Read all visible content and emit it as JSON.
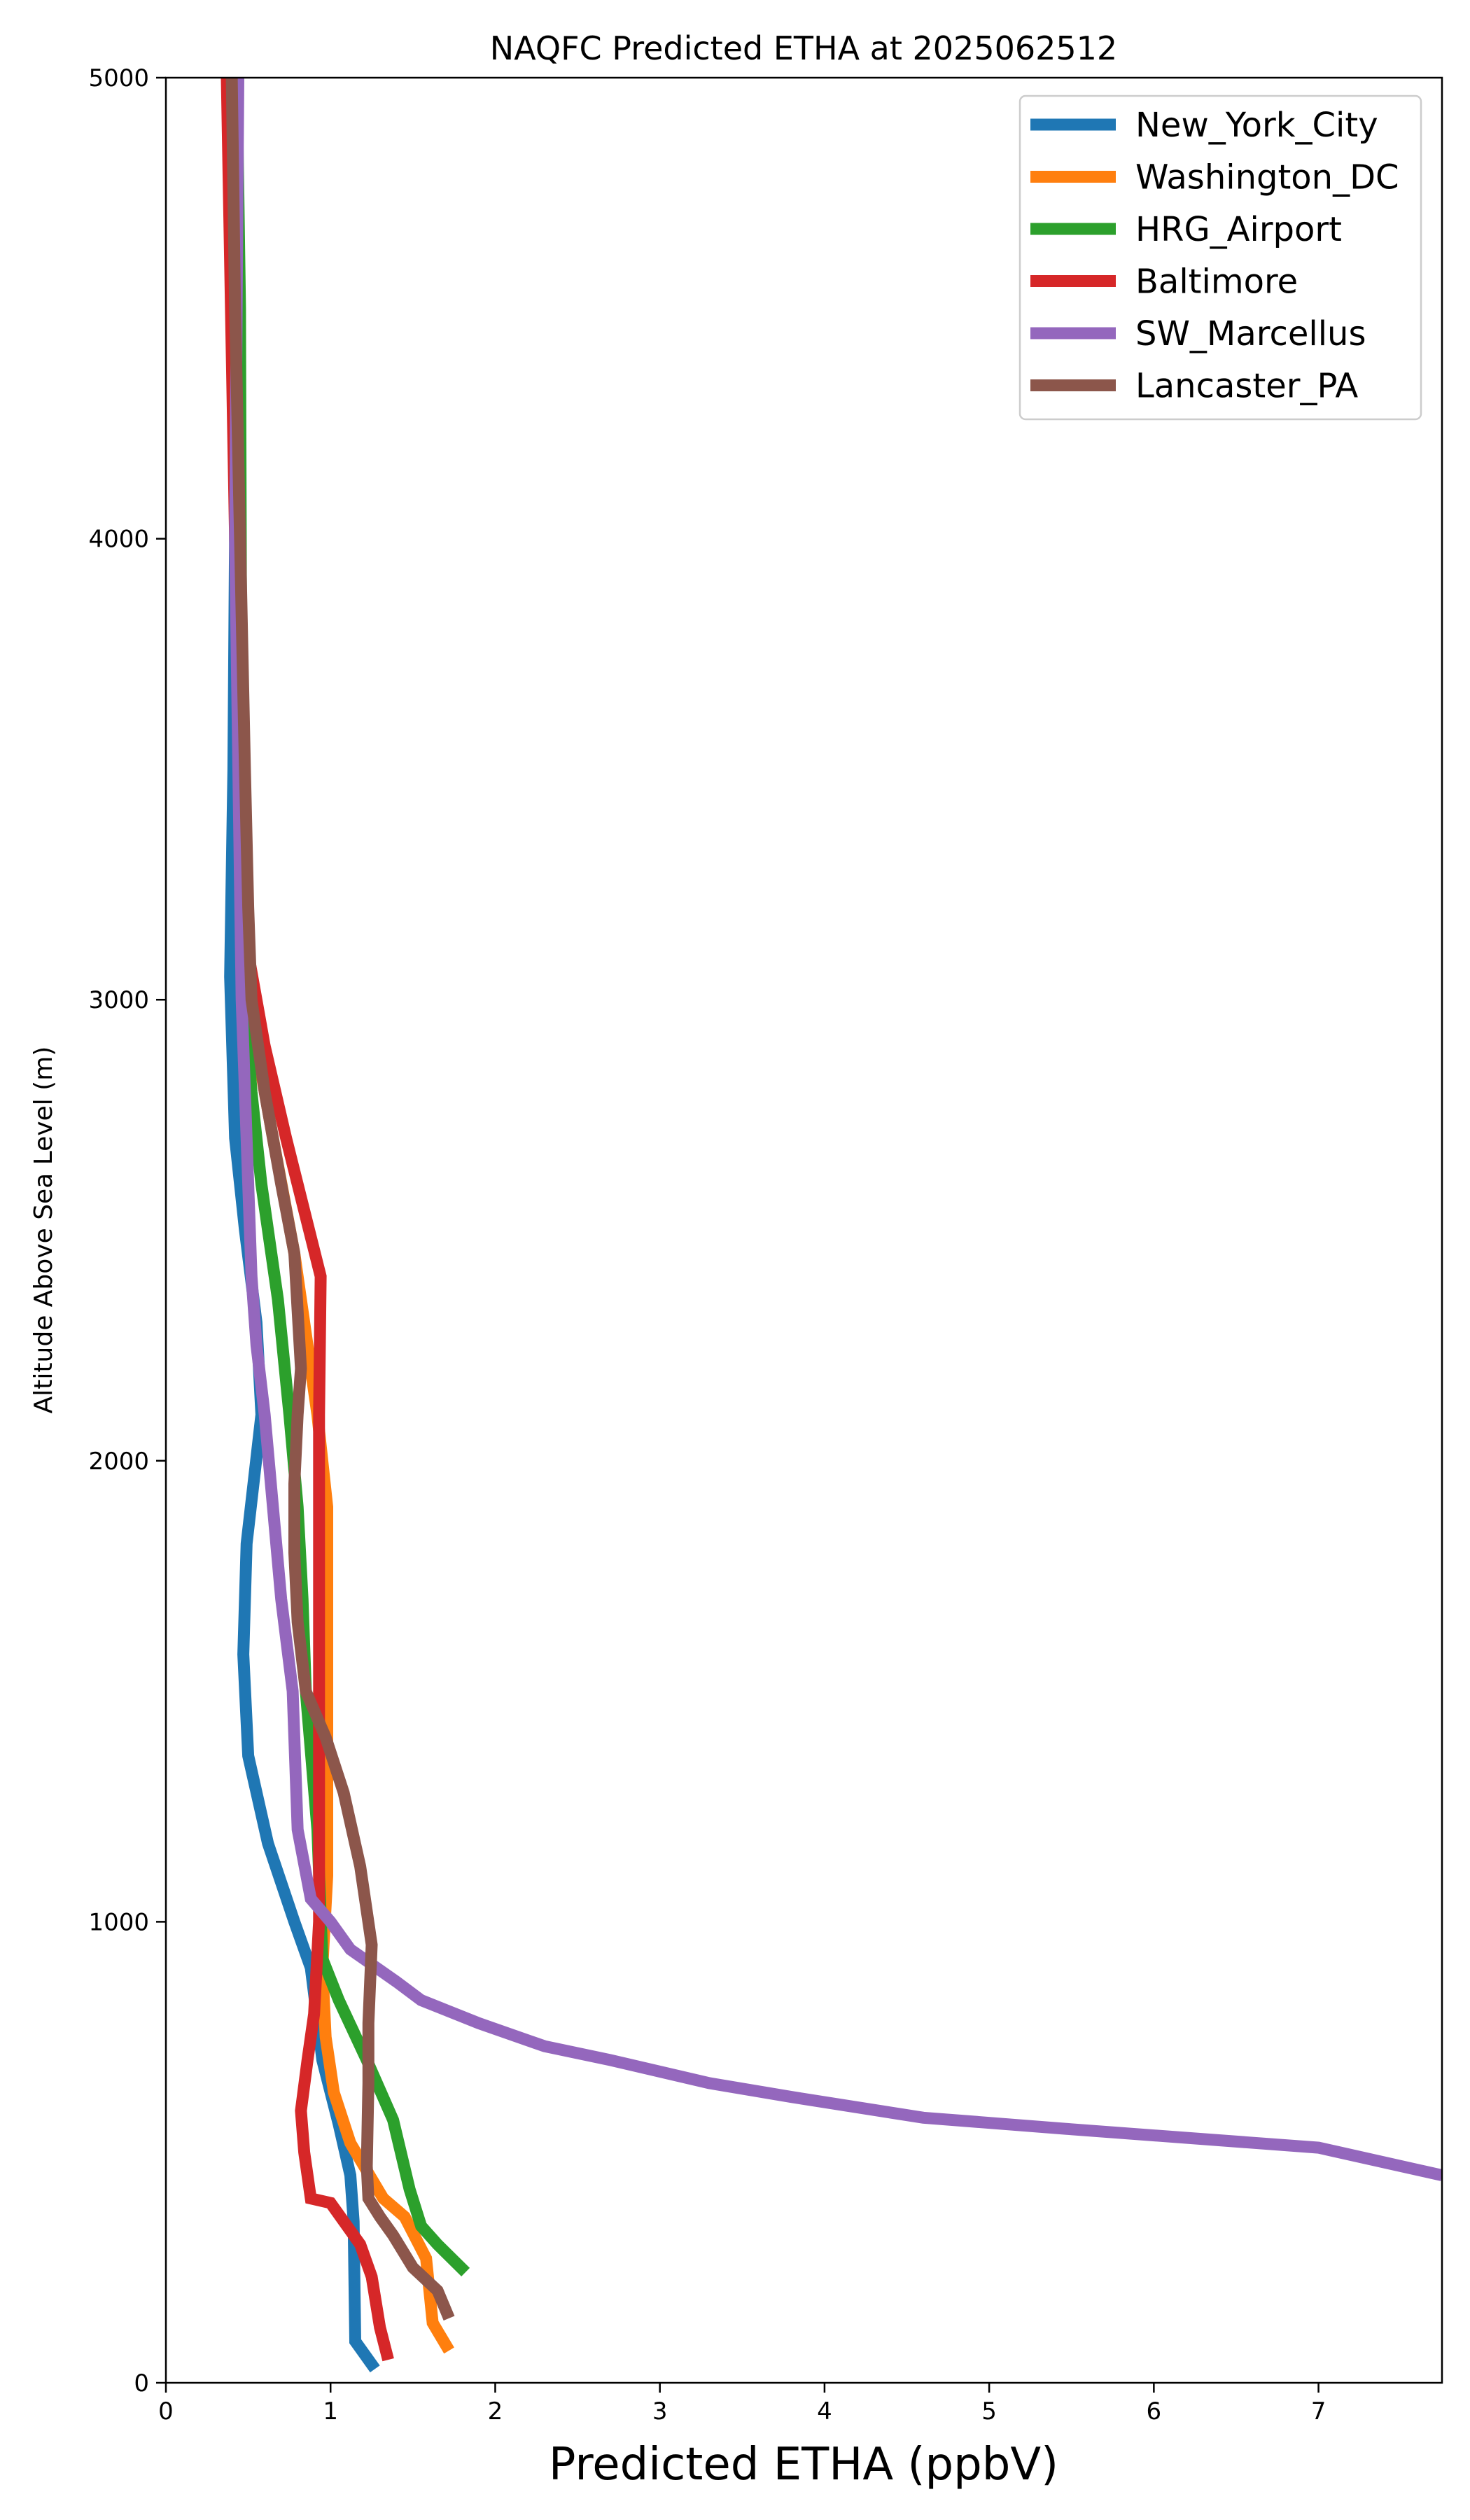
{
  "chart_data": {
    "type": "line",
    "title": "NAQFC Predicted ETHA at 2025062512",
    "xlabel": "Predicted ETHA (ppbV)",
    "ylabel": "Altitude Above Sea Level (m)",
    "xlim": [
      0,
      7.75
    ],
    "ylim": [
      0,
      5000
    ],
    "x_ticks": [
      "0",
      "1",
      "2",
      "3",
      "4",
      "5",
      "6",
      "7"
    ],
    "y_ticks": [
      "0",
      "1000",
      "2000",
      "3000",
      "4000",
      "5000"
    ],
    "grid": false,
    "legend_position": "top-right",
    "series": [
      {
        "name": "New_York_City",
        "color": "#1f77b4",
        "points": [
          [
            1.27,
            30
          ],
          [
            1.15,
            90
          ],
          [
            1.14,
            350
          ],
          [
            1.12,
            450
          ],
          [
            1.05,
            560
          ],
          [
            0.95,
            700
          ],
          [
            0.88,
            900
          ],
          [
            0.78,
            1000
          ],
          [
            0.62,
            1170
          ],
          [
            0.5,
            1360
          ],
          [
            0.47,
            1580
          ],
          [
            0.49,
            1820
          ],
          [
            0.58,
            2100
          ],
          [
            0.55,
            2300
          ],
          [
            0.48,
            2500
          ],
          [
            0.42,
            2700
          ],
          [
            0.39,
            3050
          ],
          [
            0.41,
            3500
          ],
          [
            0.43,
            4500
          ],
          [
            0.4,
            5000
          ]
        ]
      },
      {
        "name": "Washington_DC",
        "color": "#ff7f0e",
        "points": [
          [
            1.72,
            70
          ],
          [
            1.62,
            130
          ],
          [
            1.58,
            270
          ],
          [
            1.45,
            360
          ],
          [
            1.32,
            400
          ],
          [
            1.12,
            520
          ],
          [
            1.02,
            630
          ],
          [
            0.97,
            750
          ],
          [
            0.95,
            900
          ],
          [
            0.98,
            1100
          ],
          [
            0.98,
            1400
          ],
          [
            0.98,
            1700
          ],
          [
            0.98,
            1900
          ],
          [
            0.92,
            2100
          ],
          [
            0.88,
            2200
          ],
          [
            0.78,
            2450
          ],
          [
            0.65,
            2700
          ],
          [
            0.55,
            2900
          ],
          [
            0.5,
            3100
          ],
          [
            0.46,
            3500
          ],
          [
            0.43,
            4500
          ],
          [
            0.4,
            5000
          ]
        ]
      },
      {
        "name": "HRG_Airport",
        "color": "#2ca02c",
        "points": [
          [
            1.82,
            240
          ],
          [
            1.65,
            300
          ],
          [
            1.55,
            340
          ],
          [
            1.48,
            420
          ],
          [
            1.38,
            570
          ],
          [
            1.22,
            700
          ],
          [
            1.05,
            830
          ],
          [
            0.95,
            920
          ],
          [
            0.92,
            1200
          ],
          [
            0.85,
            1500
          ],
          [
            0.83,
            1700
          ],
          [
            0.8,
            1900
          ],
          [
            0.75,
            2100
          ],
          [
            0.68,
            2350
          ],
          [
            0.58,
            2600
          ],
          [
            0.52,
            2800
          ],
          [
            0.48,
            3000
          ],
          [
            0.46,
            3400
          ],
          [
            0.45,
            4500
          ],
          [
            0.43,
            5000
          ]
        ]
      },
      {
        "name": "Baltimore",
        "color": "#d62728",
        "points": [
          [
            1.35,
            50
          ],
          [
            1.3,
            120
          ],
          [
            1.25,
            230
          ],
          [
            1.18,
            300
          ],
          [
            1.0,
            390
          ],
          [
            0.88,
            400
          ],
          [
            0.84,
            500
          ],
          [
            0.82,
            590
          ],
          [
            0.86,
            700
          ],
          [
            0.9,
            800
          ],
          [
            0.93,
            1000
          ],
          [
            0.93,
            1200
          ],
          [
            0.93,
            1500
          ],
          [
            0.93,
            1800
          ],
          [
            0.93,
            2100
          ],
          [
            0.94,
            2400
          ],
          [
            0.73,
            2700
          ],
          [
            0.6,
            2900
          ],
          [
            0.5,
            3100
          ],
          [
            0.46,
            3500
          ],
          [
            0.42,
            4000
          ],
          [
            0.37,
            5000
          ]
        ]
      },
      {
        "name": "SW_Marcellus",
        "color": "#9467bd",
        "points": [
          [
            7.75,
            450
          ],
          [
            7.0,
            510
          ],
          [
            5.5,
            550
          ],
          [
            4.6,
            575
          ],
          [
            3.8,
            620
          ],
          [
            3.3,
            650
          ],
          [
            2.7,
            700
          ],
          [
            2.3,
            730
          ],
          [
            1.9,
            780
          ],
          [
            1.55,
            830
          ],
          [
            1.4,
            870
          ],
          [
            1.12,
            940
          ],
          [
            1.0,
            1000
          ],
          [
            0.88,
            1050
          ],
          [
            0.8,
            1200
          ],
          [
            0.77,
            1500
          ],
          [
            0.7,
            1700
          ],
          [
            0.65,
            1900
          ],
          [
            0.6,
            2100
          ],
          [
            0.55,
            2250
          ],
          [
            0.52,
            2400
          ],
          [
            0.5,
            2600
          ],
          [
            0.46,
            3000
          ],
          [
            0.44,
            3500
          ],
          [
            0.42,
            4000
          ],
          [
            0.43,
            4500
          ],
          [
            0.44,
            5000
          ]
        ]
      },
      {
        "name": "Lancaster_PA",
        "color": "#8c564b",
        "points": [
          [
            1.72,
            140
          ],
          [
            1.65,
            200
          ],
          [
            1.5,
            250
          ],
          [
            1.38,
            320
          ],
          [
            1.3,
            360
          ],
          [
            1.23,
            400
          ],
          [
            1.22,
            470
          ],
          [
            1.23,
            650
          ],
          [
            1.23,
            780
          ],
          [
            1.25,
            950
          ],
          [
            1.18,
            1120
          ],
          [
            1.08,
            1280
          ],
          [
            0.97,
            1400
          ],
          [
            0.85,
            1500
          ],
          [
            0.8,
            1650
          ],
          [
            0.78,
            1800
          ],
          [
            0.78,
            1950
          ],
          [
            0.8,
            2100
          ],
          [
            0.82,
            2200
          ],
          [
            0.78,
            2450
          ],
          [
            0.7,
            2600
          ],
          [
            0.6,
            2800
          ],
          [
            0.52,
            3000
          ],
          [
            0.5,
            3200
          ],
          [
            0.48,
            3500
          ],
          [
            0.45,
            4000
          ],
          [
            0.42,
            4500
          ],
          [
            0.4,
            5000
          ]
        ]
      }
    ]
  }
}
